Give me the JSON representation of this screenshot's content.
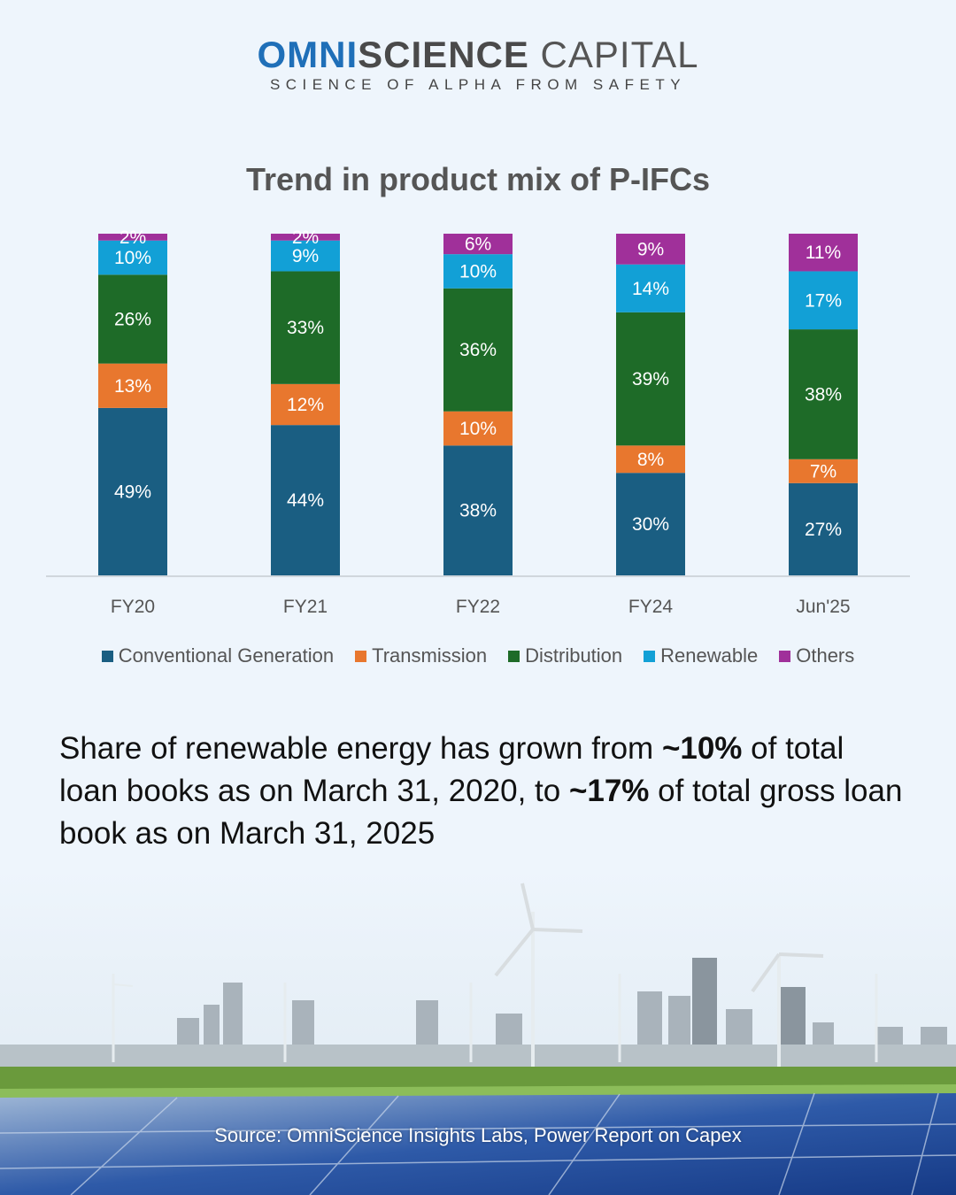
{
  "logo": {
    "part1": "OMNI",
    "part2": "SCIENCE",
    "part3": " CAPITAL",
    "tagline": "SCIENCE OF ALPHA FROM SAFETY"
  },
  "chart_data": {
    "type": "bar",
    "stacked": true,
    "title": "Trend in product mix of P-IFCs",
    "categories": [
      "FY20",
      "FY21",
      "FY22",
      "FY24",
      "Jun'25"
    ],
    "series": [
      {
        "name": "Conventional Generation",
        "color": "#1a5e82",
        "values": [
          49,
          44,
          38,
          30,
          27
        ]
      },
      {
        "name": "Transmission",
        "color": "#e8772e",
        "values": [
          13,
          12,
          10,
          8,
          7
        ]
      },
      {
        "name": "Distribution",
        "color": "#1e6b28",
        "values": [
          26,
          33,
          36,
          39,
          38
        ]
      },
      {
        "name": "Renewable",
        "color": "#12a0d6",
        "values": [
          10,
          9,
          10,
          14,
          17
        ]
      },
      {
        "name": "Others",
        "color": "#a0309a",
        "values": [
          2,
          2,
          6,
          9,
          11
        ]
      }
    ],
    "ylim": [
      0,
      100
    ],
    "unit": "%",
    "legend": "bottom",
    "grid": false
  },
  "description": {
    "t1": "Share of renewable energy has grown from ",
    "b1": "~10%",
    "t2": " of total loan books as on March 31, 2020, to ",
    "b2": "~17%",
    "t3": " of total gross loan book as on March 31, 2025"
  },
  "source": "Source: OmniScience Insights Labs, Power Report on Capex"
}
